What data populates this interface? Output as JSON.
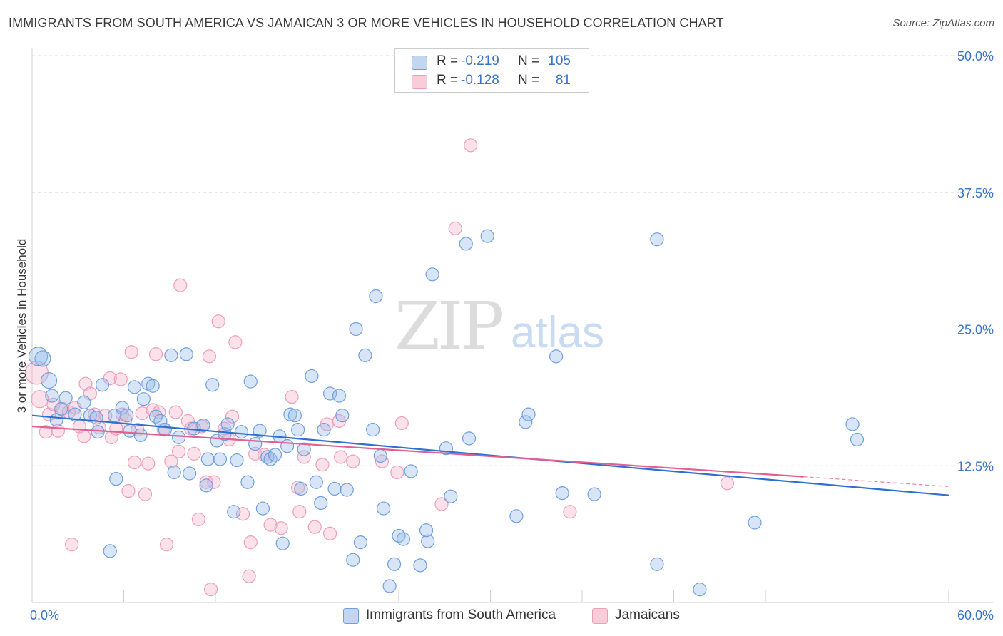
{
  "title": "IMMIGRANTS FROM SOUTH AMERICA VS JAMAICAN 3 OR MORE VEHICLES IN HOUSEHOLD CORRELATION CHART",
  "source": "Source: ZipAtlas.com",
  "watermark": {
    "zip": "ZIP",
    "atlas": "atlas"
  },
  "legend": {
    "rows": [
      {
        "r_label": "R =",
        "r_value": "-0.219",
        "n_label": "N =",
        "n_value": "105"
      },
      {
        "r_label": "R =",
        "r_value": "-0.128",
        "n_label": "N =",
        "n_value": "81"
      }
    ]
  },
  "chart_data": {
    "type": "scatter",
    "title": "IMMIGRANTS FROM SOUTH AMERICA VS JAMAICAN 3 OR MORE VEHICLES IN HOUSEHOLD CORRELATION CHART",
    "xlabel": "",
    "ylabel": "3 or more Vehicles in Household",
    "xlim": [
      0,
      60
    ],
    "ylim": [
      0,
      50
    ],
    "x_tick_labels": [
      "0.0%",
      "60.0%"
    ],
    "y_tick_values": [
      12.5,
      25.0,
      37.5,
      50.0
    ],
    "y_tick_labels": [
      "12.5%",
      "25.0%",
      "37.5%",
      "50.0%"
    ],
    "grid": true,
    "legend_position": "bottom",
    "colors": {
      "blue": "#6f9fde",
      "pink": "#ee9db8",
      "blue_line": "#2f6fd0",
      "pink_line": "#e0608f",
      "tick_label": "#3b73c8"
    },
    "series": [
      {
        "name": "Immigrants from South America",
        "color": "#6f9fde",
        "trend": {
          "x": [
            0,
            60
          ],
          "y": [
            17.1,
            9.8
          ]
        },
        "points": [
          [
            0.4,
            22.5
          ],
          [
            0.7,
            22.3
          ],
          [
            1.1,
            20.3
          ],
          [
            1.3,
            18.9
          ],
          [
            1.6,
            16.7
          ],
          [
            1.9,
            17.7
          ],
          [
            2.2,
            18.7
          ],
          [
            2.8,
            17.2
          ],
          [
            3.4,
            18.3
          ],
          [
            3.8,
            17.1
          ],
          [
            4.2,
            16.9
          ],
          [
            4.3,
            15.6
          ],
          [
            4.6,
            19.9
          ],
          [
            5.4,
            17.1
          ],
          [
            5.5,
            11.3
          ],
          [
            5.1,
            4.7
          ],
          [
            5.9,
            17.8
          ],
          [
            6.2,
            17.1
          ],
          [
            6.4,
            15.7
          ],
          [
            6.7,
            19.7
          ],
          [
            7.1,
            15.3
          ],
          [
            7.3,
            18.6
          ],
          [
            7.6,
            20.0
          ],
          [
            7.9,
            19.8
          ],
          [
            8.1,
            17.0
          ],
          [
            8.4,
            16.6
          ],
          [
            8.7,
            15.8
          ],
          [
            9.1,
            22.6
          ],
          [
            9.3,
            11.9
          ],
          [
            9.6,
            15.1
          ],
          [
            10.1,
            22.7
          ],
          [
            10.3,
            11.8
          ],
          [
            10.6,
            15.9
          ],
          [
            11.2,
            16.2
          ],
          [
            11.4,
            10.7
          ],
          [
            11.5,
            13.1
          ],
          [
            11.8,
            19.9
          ],
          [
            12.1,
            14.8
          ],
          [
            12.3,
            13.1
          ],
          [
            12.6,
            15.4
          ],
          [
            12.8,
            16.3
          ],
          [
            13.2,
            8.3
          ],
          [
            13.4,
            13.0
          ],
          [
            13.7,
            15.6
          ],
          [
            14.1,
            11.0
          ],
          [
            14.3,
            20.2
          ],
          [
            14.6,
            14.5
          ],
          [
            14.9,
            15.7
          ],
          [
            15.1,
            8.6
          ],
          [
            15.4,
            13.3
          ],
          [
            15.6,
            13.1
          ],
          [
            15.9,
            13.5
          ],
          [
            16.2,
            15.2
          ],
          [
            16.4,
            5.4
          ],
          [
            16.7,
            14.3
          ],
          [
            16.9,
            17.2
          ],
          [
            17.2,
            17.1
          ],
          [
            17.4,
            15.8
          ],
          [
            17.6,
            10.4
          ],
          [
            17.8,
            14.0
          ],
          [
            18.3,
            20.7
          ],
          [
            18.6,
            11.0
          ],
          [
            18.9,
            9.1
          ],
          [
            19.1,
            15.8
          ],
          [
            19.5,
            19.1
          ],
          [
            19.8,
            10.4
          ],
          [
            20.1,
            18.9
          ],
          [
            20.3,
            17.1
          ],
          [
            20.6,
            10.3
          ],
          [
            21.0,
            3.9
          ],
          [
            21.2,
            25.0
          ],
          [
            21.5,
            5.5
          ],
          [
            21.8,
            22.6
          ],
          [
            22.3,
            15.8
          ],
          [
            22.5,
            28.0
          ],
          [
            22.8,
            13.4
          ],
          [
            23.0,
            8.6
          ],
          [
            23.4,
            1.5
          ],
          [
            23.7,
            3.5
          ],
          [
            24.0,
            6.1
          ],
          [
            24.3,
            5.8
          ],
          [
            24.8,
            12.0
          ],
          [
            25.4,
            3.4
          ],
          [
            25.9,
            5.6
          ],
          [
            25.8,
            6.6
          ],
          [
            26.2,
            30.0
          ],
          [
            27.1,
            14.1
          ],
          [
            27.4,
            9.7
          ],
          [
            28.4,
            32.8
          ],
          [
            28.6,
            15.0
          ],
          [
            29.8,
            33.5
          ],
          [
            31.7,
            7.9
          ],
          [
            32.3,
            16.5
          ],
          [
            32.5,
            17.2
          ],
          [
            34.3,
            22.5
          ],
          [
            34.7,
            10.0
          ],
          [
            36.8,
            9.9
          ],
          [
            40.9,
            3.5
          ],
          [
            40.9,
            33.2
          ],
          [
            43.7,
            1.2
          ],
          [
            47.3,
            7.3
          ],
          [
            53.7,
            16.3
          ],
          [
            54.0,
            14.9
          ]
        ]
      },
      {
        "name": "Jamaicans",
        "color": "#ee9db8",
        "trend": {
          "x": [
            0,
            50.5
          ],
          "y": [
            16.1,
            11.5
          ]
        },
        "trend_dashed": {
          "x": [
            50.5,
            60
          ],
          "y": [
            11.5,
            10.6
          ]
        },
        "points": [
          [
            0.3,
            21.0
          ],
          [
            0.5,
            18.6
          ],
          [
            0.9,
            15.6
          ],
          [
            1.1,
            17.2
          ],
          [
            1.4,
            18.1
          ],
          [
            1.7,
            15.7
          ],
          [
            2.0,
            17.7
          ],
          [
            2.4,
            17.4
          ],
          [
            2.6,
            5.3
          ],
          [
            2.8,
            17.8
          ],
          [
            3.1,
            16.1
          ],
          [
            3.4,
            15.2
          ],
          [
            3.5,
            20.0
          ],
          [
            3.8,
            19.1
          ],
          [
            4.1,
            17.2
          ],
          [
            4.4,
            16.0
          ],
          [
            4.8,
            17.1
          ],
          [
            5.1,
            20.5
          ],
          [
            5.2,
            15.1
          ],
          [
            5.5,
            15.9
          ],
          [
            5.8,
            20.4
          ],
          [
            5.9,
            17.2
          ],
          [
            6.1,
            16.7
          ],
          [
            6.3,
            10.2
          ],
          [
            6.5,
            22.9
          ],
          [
            6.7,
            12.8
          ],
          [
            6.9,
            15.8
          ],
          [
            7.2,
            17.3
          ],
          [
            7.4,
            9.9
          ],
          [
            7.6,
            12.7
          ],
          [
            7.9,
            17.6
          ],
          [
            8.1,
            22.7
          ],
          [
            8.3,
            17.4
          ],
          [
            8.6,
            15.8
          ],
          [
            8.8,
            5.3
          ],
          [
            9.1,
            12.9
          ],
          [
            9.4,
            17.4
          ],
          [
            9.6,
            13.8
          ],
          [
            9.7,
            29.0
          ],
          [
            10.2,
            16.6
          ],
          [
            10.4,
            15.9
          ],
          [
            10.6,
            13.6
          ],
          [
            10.9,
            7.6
          ],
          [
            11.1,
            16.1
          ],
          [
            11.4,
            11.0
          ],
          [
            11.6,
            22.5
          ],
          [
            11.7,
            1.2
          ],
          [
            11.9,
            11.0
          ],
          [
            12.2,
            25.7
          ],
          [
            12.6,
            15.9
          ],
          [
            12.9,
            14.9
          ],
          [
            13.1,
            17.0
          ],
          [
            13.3,
            23.8
          ],
          [
            13.8,
            8.1
          ],
          [
            14.2,
            2.4
          ],
          [
            14.3,
            5.5
          ],
          [
            14.6,
            13.6
          ],
          [
            15.2,
            13.5
          ],
          [
            15.6,
            7.1
          ],
          [
            16.3,
            6.8
          ],
          [
            17.0,
            18.8
          ],
          [
            17.4,
            10.5
          ],
          [
            17.5,
            8.3
          ],
          [
            17.8,
            13.3
          ],
          [
            18.5,
            6.9
          ],
          [
            19.0,
            12.6
          ],
          [
            19.3,
            16.3
          ],
          [
            19.5,
            6.3
          ],
          [
            20.1,
            16.6
          ],
          [
            20.2,
            13.3
          ],
          [
            21.0,
            12.9
          ],
          [
            22.9,
            12.9
          ],
          [
            23.9,
            11.9
          ],
          [
            24.2,
            16.4
          ],
          [
            26.8,
            9.0
          ],
          [
            27.7,
            34.2
          ],
          [
            28.7,
            41.8
          ],
          [
            35.2,
            8.3
          ],
          [
            45.5,
            10.9
          ]
        ]
      }
    ]
  },
  "bottom_legend": {
    "items": [
      {
        "label": "Immigrants from South America"
      },
      {
        "label": "Jamaicans"
      }
    ]
  }
}
